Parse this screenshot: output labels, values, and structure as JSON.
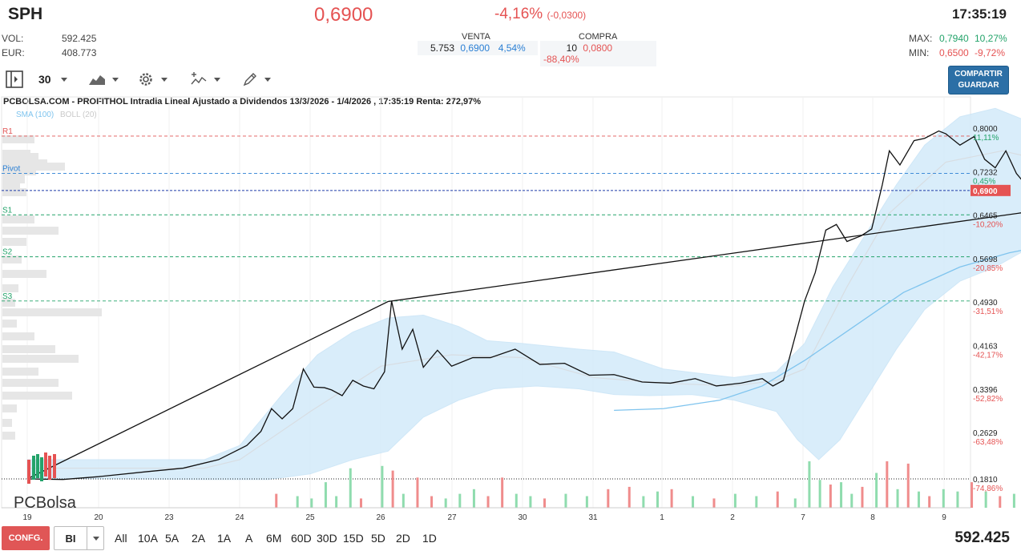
{
  "header": {
    "ticker": "SPH",
    "price": "0,6900",
    "change_pct": "-4,16%",
    "change_abs": "(-0,0300)",
    "time": "17:35:19",
    "vol_label": "VOL:",
    "vol_value": "592.425",
    "eur_label": "EUR:",
    "eur_value": "408.773",
    "venta_label": "VENTA",
    "venta_qty": "5.753",
    "venta_price": "0,6900",
    "venta_pct": "4,54%",
    "compra_label": "COMPRA",
    "compra_qty": "10",
    "compra_price": "0,0800",
    "compra_pct": "-88,40%",
    "max_label": "MAX:",
    "max_value": "0,7940",
    "max_pct": "10,27%",
    "min_label": "MIN:",
    "min_value": "0,6500",
    "min_pct": "-9,72%"
  },
  "toolbar": {
    "period_value": "30",
    "share_line1": "COMPARTIR",
    "share_line2": "GUARDAR"
  },
  "chart_title": "PCBOLSA.COM - PROFITHOL Intradia Lineal Ajustado a Dividendos 13/3/2026 - 1/4/2026 , 17:35:19 Renta: 272,97%",
  "legend": {
    "sma": "SMA (100)",
    "boll": "BOLL (20)"
  },
  "logo": "PCBolsa",
  "bottom": {
    "config": "CONFG.",
    "bi": "BI",
    "periods": [
      "All",
      "10A",
      "5A",
      "2A",
      "1A",
      "A",
      "6M",
      "60D",
      "30D",
      "15D",
      "5D",
      "2D",
      "1D"
    ],
    "volume": "592.425"
  },
  "colors": {
    "up": "#23a36a",
    "down": "#e55353",
    "accent": "#2a7fd4",
    "band": "#d3ebfa",
    "sma": "#7fc4ee"
  },
  "chart_data": {
    "type": "line",
    "title": "PCBOLSA.COM - PROFITHOL Intradia Lineal Ajustado a Dividendos 13/3/2026 - 1/4/2026 , 17:35:19 Renta: 272,97%",
    "x_ticks": [
      "19",
      "20",
      "23",
      "24",
      "25",
      "26",
      "27",
      "30",
      "31",
      "1",
      "2",
      "7",
      "8",
      "9"
    ],
    "y_ticks": [
      {
        "value": 0.8,
        "label": "0,8000",
        "pct": "11,11%"
      },
      {
        "value": 0.7232,
        "label": "0,7232",
        "pct": "0,45%"
      },
      {
        "value": 0.6465,
        "label": "0,6465",
        "pct": "-10,20%"
      },
      {
        "value": 0.5698,
        "label": "0,5698",
        "pct": "-20,85%"
      },
      {
        "value": 0.493,
        "label": "0,4930",
        "pct": "-31,51%"
      },
      {
        "value": 0.4163,
        "label": "0,4163",
        "pct": "-42,17%"
      },
      {
        "value": 0.3396,
        "label": "0,3396",
        "pct": "-52,82%"
      },
      {
        "value": 0.2629,
        "label": "0,2629",
        "pct": "-63,48%"
      },
      {
        "value": 0.181,
        "label": "0,1810",
        "pct": "-74,86%"
      }
    ],
    "ylim": [
      0.15,
      0.84
    ],
    "xlim": [
      19,
      9.4
    ],
    "current_price": {
      "value": 0.69,
      "label": "0,6900"
    },
    "levels": [
      {
        "name": "R1",
        "value": 0.786
      },
      {
        "name": "Pivot",
        "value": 0.72
      },
      {
        "name": "S1",
        "value": 0.647
      },
      {
        "name": "S2",
        "value": 0.573
      },
      {
        "name": "S3",
        "value": 0.495
      }
    ],
    "series": [
      {
        "name": "Precio",
        "values": [
          [
            19.0,
            0.181
          ],
          [
            19.5,
            0.18
          ],
          [
            20.0,
            0.185
          ],
          [
            20.7,
            0.194
          ],
          [
            21.2,
            0.2
          ],
          [
            21.7,
            0.215
          ],
          [
            22.1,
            0.24
          ],
          [
            22.3,
            0.265
          ],
          [
            22.45,
            0.305
          ],
          [
            22.6,
            0.287
          ],
          [
            22.75,
            0.305
          ],
          [
            22.9,
            0.375
          ],
          [
            23.05,
            0.343
          ],
          [
            23.2,
            0.342
          ],
          [
            23.3,
            0.338
          ],
          [
            23.45,
            0.328
          ],
          [
            23.6,
            0.355
          ],
          [
            23.75,
            0.345
          ],
          [
            23.9,
            0.34
          ],
          [
            24.05,
            0.37
          ],
          [
            24.15,
            0.495
          ],
          [
            24.3,
            0.41
          ],
          [
            24.45,
            0.445
          ],
          [
            24.6,
            0.378
          ],
          [
            24.8,
            0.408
          ],
          [
            25.0,
            0.38
          ],
          [
            25.3,
            0.395
          ],
          [
            25.55,
            0.395
          ],
          [
            25.9,
            0.41
          ],
          [
            26.25,
            0.383
          ],
          [
            26.6,
            0.385
          ],
          [
            26.95,
            0.364
          ],
          [
            27.3,
            0.365
          ],
          [
            27.7,
            0.352
          ],
          [
            28.1,
            0.35
          ],
          [
            28.45,
            0.358
          ],
          [
            28.75,
            0.345
          ],
          [
            29.1,
            0.35
          ],
          [
            29.4,
            0.358
          ],
          [
            29.55,
            0.345
          ],
          [
            29.7,
            0.355
          ],
          [
            30.0,
            0.495
          ],
          [
            30.15,
            0.545
          ],
          [
            30.3,
            0.62
          ],
          [
            30.45,
            0.63
          ],
          [
            30.6,
            0.6
          ],
          [
            30.8,
            0.61
          ],
          [
            30.95,
            0.622
          ],
          [
            31.1,
            0.7
          ],
          [
            31.2,
            0.76
          ],
          [
            31.35,
            0.735
          ],
          [
            31.55,
            0.778
          ],
          [
            31.7,
            0.782
          ],
          [
            31.9,
            0.795
          ],
          [
            32.0,
            0.79
          ],
          [
            32.2,
            0.77
          ],
          [
            32.4,
            0.785
          ],
          [
            32.55,
            0.745
          ],
          [
            32.7,
            0.73
          ],
          [
            32.85,
            0.76
          ],
          [
            33.0,
            0.72
          ],
          [
            33.1,
            0.705
          ],
          [
            33.3,
            0.705
          ],
          [
            33.5,
            0.695
          ],
          [
            33.7,
            0.698
          ],
          [
            33.85,
            0.69
          ],
          [
            34.0,
            0.682
          ],
          [
            34.15,
            0.69
          ]
        ]
      },
      {
        "name": "SMA (100)",
        "values": [
          [
            27.3,
            0.302
          ],
          [
            28.0,
            0.305
          ],
          [
            28.8,
            0.32
          ],
          [
            29.4,
            0.345
          ],
          [
            30.0,
            0.39
          ],
          [
            30.7,
            0.45
          ],
          [
            31.4,
            0.51
          ],
          [
            32.2,
            0.555
          ],
          [
            32.9,
            0.58
          ],
          [
            33.5,
            0.595
          ],
          [
            34.15,
            0.602
          ]
        ]
      },
      {
        "name": "BOLL (20)",
        "values": [
          [
            19.0,
            0.2
          ],
          [
            21.5,
            0.2
          ],
          [
            22.0,
            0.215
          ],
          [
            23.0,
            0.3
          ],
          [
            24.0,
            0.38
          ],
          [
            25.0,
            0.4
          ],
          [
            26.0,
            0.395
          ],
          [
            27.0,
            0.36
          ],
          [
            28.0,
            0.35
          ],
          [
            29.0,
            0.345
          ],
          [
            29.6,
            0.355
          ],
          [
            30.0,
            0.375
          ],
          [
            30.6,
            0.52
          ],
          [
            31.2,
            0.65
          ],
          [
            32.0,
            0.74
          ],
          [
            32.8,
            0.76
          ],
          [
            33.5,
            0.74
          ],
          [
            34.15,
            0.72
          ]
        ]
      }
    ],
    "trendline": [
      [
        19.0,
        0.181
      ],
      [
        24.1,
        0.494
      ],
      [
        35.1,
        0.686
      ]
    ],
    "volume": [
      {
        "x": 22.5,
        "v": 0.3,
        "up": false
      },
      {
        "x": 22.8,
        "v": 0.25,
        "up": true
      },
      {
        "x": 23.0,
        "v": 0.2,
        "up": true
      },
      {
        "x": 23.2,
        "v": 0.55,
        "up": true
      },
      {
        "x": 23.35,
        "v": 0.25,
        "up": true
      },
      {
        "x": 23.55,
        "v": 0.85,
        "up": true
      },
      {
        "x": 23.7,
        "v": 0.2,
        "up": false
      },
      {
        "x": 24.0,
        "v": 0.9,
        "up": true
      },
      {
        "x": 24.15,
        "v": 0.8,
        "up": false
      },
      {
        "x": 24.3,
        "v": 0.3,
        "up": true
      },
      {
        "x": 24.5,
        "v": 0.65,
        "up": false
      },
      {
        "x": 24.7,
        "v": 0.25,
        "up": false
      },
      {
        "x": 24.9,
        "v": 0.2,
        "up": true
      },
      {
        "x": 25.1,
        "v": 0.3,
        "up": true
      },
      {
        "x": 25.3,
        "v": 0.4,
        "up": true
      },
      {
        "x": 25.5,
        "v": 0.25,
        "up": false
      },
      {
        "x": 25.7,
        "v": 0.65,
        "up": false
      },
      {
        "x": 25.9,
        "v": 0.3,
        "up": true
      },
      {
        "x": 26.1,
        "v": 0.25,
        "up": true
      },
      {
        "x": 26.3,
        "v": 0.2,
        "up": false
      },
      {
        "x": 26.6,
        "v": 0.3,
        "up": true
      },
      {
        "x": 26.9,
        "v": 0.25,
        "up": true
      },
      {
        "x": 27.2,
        "v": 0.4,
        "up": false
      },
      {
        "x": 27.5,
        "v": 0.45,
        "up": false
      },
      {
        "x": 27.7,
        "v": 0.25,
        "up": true
      },
      {
        "x": 27.9,
        "v": 0.35,
        "up": true
      },
      {
        "x": 28.1,
        "v": 0.4,
        "up": false
      },
      {
        "x": 28.4,
        "v": 0.25,
        "up": true
      },
      {
        "x": 28.7,
        "v": 0.2,
        "up": false
      },
      {
        "x": 29.0,
        "v": 0.3,
        "up": true
      },
      {
        "x": 29.3,
        "v": 0.25,
        "up": true
      },
      {
        "x": 29.6,
        "v": 0.35,
        "up": false
      },
      {
        "x": 29.85,
        "v": 0.2,
        "up": true
      },
      {
        "x": 30.05,
        "v": 1.0,
        "up": true
      },
      {
        "x": 30.2,
        "v": 0.6,
        "up": true
      },
      {
        "x": 30.35,
        "v": 0.5,
        "up": false
      },
      {
        "x": 30.5,
        "v": 0.55,
        "up": true
      },
      {
        "x": 30.65,
        "v": 0.3,
        "up": true
      },
      {
        "x": 30.8,
        "v": 0.45,
        "up": false
      },
      {
        "x": 31.0,
        "v": 0.75,
        "up": true
      },
      {
        "x": 31.15,
        "v": 1.0,
        "up": false
      },
      {
        "x": 31.3,
        "v": 0.4,
        "up": true
      },
      {
        "x": 31.45,
        "v": 0.95,
        "up": false
      },
      {
        "x": 31.6,
        "v": 0.35,
        "up": true
      },
      {
        "x": 31.75,
        "v": 0.25,
        "up": false
      },
      {
        "x": 31.95,
        "v": 0.4,
        "up": true
      },
      {
        "x": 32.15,
        "v": 0.35,
        "up": true
      },
      {
        "x": 32.35,
        "v": 0.55,
        "up": false
      },
      {
        "x": 32.55,
        "v": 0.35,
        "up": true
      },
      {
        "x": 32.75,
        "v": 0.25,
        "up": false
      },
      {
        "x": 32.95,
        "v": 0.3,
        "up": true
      },
      {
        "x": 33.15,
        "v": 0.2,
        "up": true
      },
      {
        "x": 33.4,
        "v": 0.25,
        "up": false
      },
      {
        "x": 33.6,
        "v": 0.45,
        "up": true
      },
      {
        "x": 33.85,
        "v": 0.35,
        "up": true
      },
      {
        "x": 34.0,
        "v": 0.25,
        "up": false
      }
    ]
  }
}
